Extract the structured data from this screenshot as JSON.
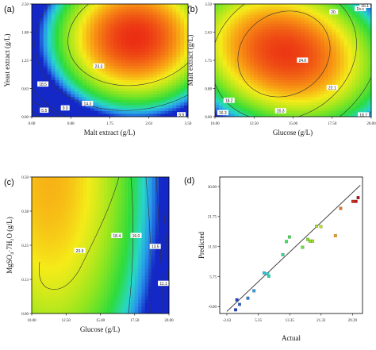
{
  "chart_data": [
    {
      "panel": "(a)",
      "type": "heatmap",
      "xlabel": "Malt extract (g/L)",
      "ylabel": "Yeast extract (g/L)",
      "xlim": [
        0.0,
        3.5
      ],
      "ylim": [
        0.0,
        2.5
      ],
      "xticks": [
        "0.00",
        "0.88",
        "1.75",
        "2.63",
        "3.50"
      ],
      "yticks": [
        "0.00",
        "0.63",
        "1.25",
        "1.88",
        "2.50"
      ],
      "peak": {
        "x": 2.3,
        "y": 1.75
      },
      "contour_labels": [
        {
          "text": "23.3",
          "x": 1.5,
          "y": 1.12
        },
        {
          "text": "18.5",
          "x": 0.25,
          "y": 0.72
        },
        {
          "text": "14.3",
          "x": 1.25,
          "y": 0.29
        },
        {
          "text": "9.9",
          "x": 0.75,
          "y": 0.19
        },
        {
          "text": "5.5",
          "x": 0.28,
          "y": 0.14
        },
        {
          "text": "9.9",
          "x": 3.35,
          "y": 0.04
        }
      ]
    },
    {
      "panel": "(b)",
      "type": "heatmap",
      "xlabel": "Glucose (g/L)",
      "ylabel": "Malt extract (g/L)",
      "xlim": [
        10.0,
        20.0
      ],
      "ylim": [
        0.0,
        3.5
      ],
      "xticks": [
        "10.00",
        "12.50",
        "15.00",
        "17.50",
        "20.00"
      ],
      "yticks": [
        "0.00",
        "0.88",
        "1.75",
        "2.63",
        "3.50"
      ],
      "peak": {
        "x": 14.5,
        "y": 2.0
      },
      "contour_labels": [
        {
          "text": "24.0",
          "x": 15.6,
          "y": 1.75
        },
        {
          "text": "22.1",
          "x": 17.5,
          "y": 0.9
        },
        {
          "text": "20.3",
          "x": 14.2,
          "y": 0.18
        },
        {
          "text": "18.2",
          "x": 10.9,
          "y": 0.5
        },
        {
          "text": "16.3",
          "x": 10.5,
          "y": 0.12
        },
        {
          "text": "18.7",
          "x": 19.5,
          "y": 0.05
        },
        {
          "text": "20.",
          "x": 17.6,
          "y": 3.25
        },
        {
          "text": "18.5",
          "x": 19.3,
          "y": 3.35
        },
        {
          "text": "16.1",
          "x": 19.6,
          "y": 3.45
        }
      ]
    },
    {
      "panel": "(c)",
      "type": "heatmap",
      "xlabel": "Glucose (g/L)",
      "ylabel": "MgSO₄·7H₂O (g/L)",
      "xlim": [
        10.0,
        20.0
      ],
      "ylim": [
        0.0,
        0.5
      ],
      "xticks": [
        "10.00",
        "12.50",
        "15.00",
        "17.50",
        "20.00"
      ],
      "yticks": [
        "0.00",
        "0.13",
        "0.25",
        "0.38",
        "0.50"
      ],
      "peak": {
        "x": 11.5,
        "y": 0.5
      },
      "contour_labels": [
        {
          "text": "20.9",
          "x": 13.5,
          "y": 0.23
        },
        {
          "text": "18.4",
          "x": 16.2,
          "y": 0.285
        },
        {
          "text": "16.0",
          "x": 17.6,
          "y": 0.285
        },
        {
          "text": "13.5",
          "x": 19.0,
          "y": 0.245
        },
        {
          "text": "11.1",
          "x": 19.6,
          "y": 0.11
        }
      ]
    },
    {
      "panel": "(d)",
      "type": "scatter",
      "xlabel": "Actual",
      "ylabel": "Predicted",
      "xlim": [
        -2.63,
        30.0
      ],
      "ylim": [
        -1.5,
        31.5
      ],
      "xticks": [
        "-2.63",
        "5.35",
        "13.35",
        "21.32",
        "29.39"
      ],
      "yticks": [
        "-0.00",
        "5.75",
        "11.50",
        "21.75",
        "30.00"
      ],
      "fit_line": [
        [
          -1.0,
          -1.0
        ],
        [
          29.5,
          29.5
        ]
      ],
      "points": [
        {
          "x": 1.0,
          "y": -0.6,
          "color": "#1a3dc8"
        },
        {
          "x": 1.3,
          "y": 1.8,
          "color": "#1a3dc8"
        },
        {
          "x": 1.9,
          "y": 0.7,
          "color": "#2a60d0"
        },
        {
          "x": 3.8,
          "y": 2.2,
          "color": "#2a7ad8"
        },
        {
          "x": 5.2,
          "y": 4.0,
          "color": "#2aa0e0"
        },
        {
          "x": 7.5,
          "y": 8.3,
          "color": "#2ac0e0"
        },
        {
          "x": 8.3,
          "y": 8.1,
          "color": "#30d0c8"
        },
        {
          "x": 8.6,
          "y": 7.5,
          "color": "#30d8b0"
        },
        {
          "x": 11.8,
          "y": 12.7,
          "color": "#30d890"
        },
        {
          "x": 12.6,
          "y": 15.9,
          "color": "#40e060"
        },
        {
          "x": 13.3,
          "y": 17.0,
          "color": "#40e050"
        },
        {
          "x": 16.3,
          "y": 14.5,
          "color": "#60e030"
        },
        {
          "x": 17.5,
          "y": 16.4,
          "color": "#80e020"
        },
        {
          "x": 18.0,
          "y": 16.0,
          "color": "#90e020"
        },
        {
          "x": 18.6,
          "y": 16.0,
          "color": "#a0e020"
        },
        {
          "x": 19.5,
          "y": 19.6,
          "color": "#a8e020"
        },
        {
          "x": 20.5,
          "y": 19.5,
          "color": "#b8e020"
        },
        {
          "x": 23.8,
          "y": 17.3,
          "color": "#f0a020"
        },
        {
          "x": 25.0,
          "y": 23.9,
          "color": "#f07018"
        },
        {
          "x": 27.8,
          "y": 25.6,
          "color": "#d02818"
        },
        {
          "x": 28.5,
          "y": 25.6,
          "color": "#c01818"
        },
        {
          "x": 29.0,
          "y": 26.5,
          "color": "#b01010"
        }
      ]
    }
  ]
}
